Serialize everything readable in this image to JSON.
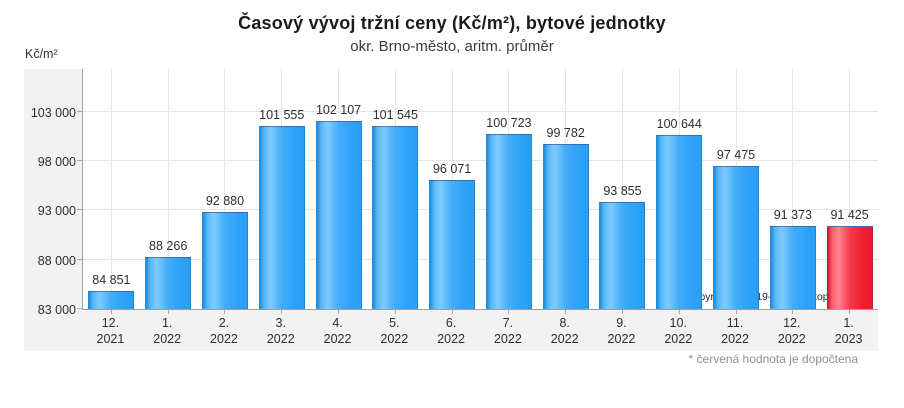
{
  "chart_data": {
    "type": "bar",
    "title": "Časový vývoj tržní ceny  (Kč/m²),  bytové jednotky",
    "subtitle": "okr. Brno-město, aritm. průměr",
    "unit_label": "Kč/m²",
    "categories": [
      {
        "month": "12.",
        "year": "2021"
      },
      {
        "month": "1.",
        "year": "2022"
      },
      {
        "month": "2.",
        "year": "2022"
      },
      {
        "month": "3.",
        "year": "2022"
      },
      {
        "month": "4.",
        "year": "2022"
      },
      {
        "month": "5.",
        "year": "2022"
      },
      {
        "month": "6.",
        "year": "2022"
      },
      {
        "month": "7.",
        "year": "2022"
      },
      {
        "month": "8.",
        "year": "2022"
      },
      {
        "month": "9.",
        "year": "2022"
      },
      {
        "month": "10.",
        "year": "2022"
      },
      {
        "month": "11.",
        "year": "2022"
      },
      {
        "month": "12.",
        "year": "2022"
      },
      {
        "month": "1.",
        "year": "2023"
      }
    ],
    "values": [
      84851,
      88266,
      92880,
      101555,
      102107,
      101545,
      96071,
      100723,
      99782,
      93855,
      100644,
      97475,
      91373,
      91425
    ],
    "value_labels": [
      "84 851",
      "88 266",
      "92 880",
      "101 555",
      "102 107",
      "101 545",
      "96 071",
      "100 723",
      "99 782",
      "93 855",
      "100 644",
      "97 475",
      "91 373",
      "91 425"
    ],
    "highlighted_index": 13,
    "highlight_meaning": "červená hodnota je dopočtena",
    "ylim": [
      83000,
      107340
    ],
    "yticks": [
      83000,
      88000,
      93000,
      98000,
      103000
    ],
    "ytick_labels": [
      "83 000",
      "88 000",
      "93 000",
      "98 000",
      "103 000"
    ],
    "grid": true,
    "legend_position": "none",
    "colors": {
      "bar_default": "#2da2f8",
      "bar_highlight": "#ee1f31",
      "panel_background": "#f2f2f2",
      "plot_background": "#ffffff",
      "gridline": "#e4e4e4",
      "axis": "#9aa0a8"
    },
    "footnote": "* červená hodnota je dopočtena",
    "copyright": "Copyright © 2019-2023, OctopusPro"
  }
}
